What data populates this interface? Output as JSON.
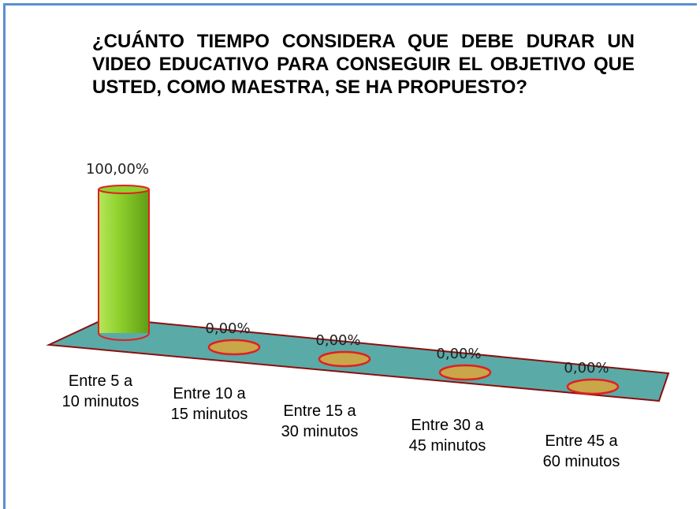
{
  "chart_data": {
    "type": "bar3d",
    "title": "¿CUÁNTO TIEMPO CONSIDERA QUE DEBE DURAR UN VIDEO EDUCATIVO PARA CONSEGUIR EL OBJETIVO QUE USTED, COMO MAESTRA, SE HA PROPUESTO?",
    "categories": [
      "Entre 5 a 10 minutos",
      "Entre 10 a 15 minutos",
      "Entre 15 a 30 minutos",
      "Entre 30 a 45 minutos",
      "Entre 45 a 60 minutos"
    ],
    "values": [
      100,
      0,
      0,
      0,
      0
    ],
    "value_labels": [
      "100,00%",
      "0,00%",
      "0,00%",
      "0,00%",
      "0,00%"
    ],
    "color": "#8fd12e"
  }
}
